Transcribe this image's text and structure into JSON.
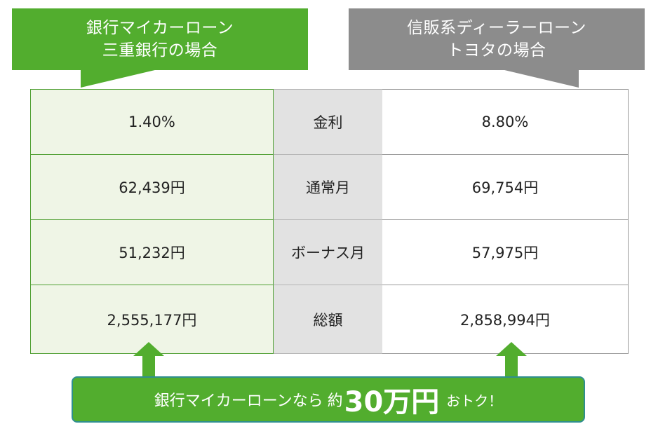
{
  "headers": {
    "bank": {
      "line1": "銀行マイカーローン",
      "line2": "三重銀行の場合",
      "color": "#52ad2e"
    },
    "dealer": {
      "line1": "信販系ディーラーローン",
      "line2": "トヨタの場合",
      "color": "#8c8c8c"
    }
  },
  "rows": [
    {
      "label": "金利",
      "bank": "1.40%",
      "dealer": "8.80%"
    },
    {
      "label": "通常月",
      "bank": "62,439円",
      "dealer": "69,754円"
    },
    {
      "label": "ボーナス月",
      "bank": "51,232円",
      "dealer": "57,975円"
    },
    {
      "label": "総額",
      "bank": "2,555,177円",
      "dealer": "2,858,994円"
    }
  ],
  "summary": {
    "prefix": "銀行マイカーローンなら",
    "approx": "約",
    "amount": "30万円",
    "suffix": "おトク！"
  },
  "icons": {
    "arrow": "arrow-up-icon"
  }
}
